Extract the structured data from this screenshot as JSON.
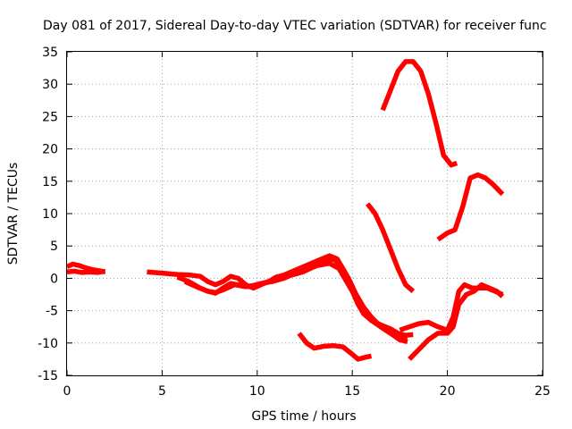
{
  "chart_data": {
    "type": "line",
    "title": "Day 081 of 2017, Sidereal Day-to-day VTEC variation (SDTVAR) for receiver func",
    "xlabel": "GPS time / hours",
    "ylabel": "SDTVAR / TECUs",
    "xlim": [
      0,
      25
    ],
    "ylim": [
      -15,
      35
    ],
    "xticks": [
      0,
      5,
      10,
      15,
      20,
      25
    ],
    "yticks": [
      -15,
      -10,
      -5,
      0,
      5,
      10,
      15,
      20,
      25,
      30,
      35
    ],
    "grid": true,
    "legend": "none",
    "series_color": "#ff0000",
    "series": [
      {
        "x": [
          0.0,
          0.3,
          0.6,
          1.0,
          1.4,
          1.8,
          2.0
        ],
        "y": [
          1.8,
          2.2,
          2.0,
          1.6,
          1.3,
          1.1,
          1.0
        ]
      },
      {
        "x": [
          0.0,
          0.4,
          0.8,
          1.2,
          1.6,
          2.0
        ],
        "y": [
          1.0,
          1.1,
          0.9,
          1.0,
          0.9,
          1.1
        ]
      },
      {
        "x": [
          4.2,
          5.0,
          5.8,
          6.5,
          7.0,
          7.4,
          7.8,
          8.2,
          8.6,
          9.0,
          9.4,
          9.8,
          10.2,
          10.6,
          11.0,
          11.4,
          11.8,
          12.2,
          12.6,
          13.0,
          13.4,
          13.8,
          14.2,
          14.6,
          15.0,
          15.3,
          15.6,
          16.0,
          16.5,
          17.0,
          17.4,
          17.8,
          18.2
        ],
        "y": [
          1.0,
          0.8,
          0.6,
          0.5,
          0.3,
          -0.5,
          -1.0,
          -0.5,
          0.3,
          0.0,
          -1.0,
          -1.5,
          -1.0,
          -0.5,
          0.2,
          0.5,
          1.0,
          1.5,
          2.0,
          2.5,
          3.0,
          3.5,
          3.0,
          1.0,
          -2.0,
          -4.0,
          -5.5,
          -6.5,
          -7.2,
          -7.8,
          -8.5,
          -8.8,
          -8.7
        ]
      },
      {
        "x": [
          5.8,
          6.4,
          7.0,
          7.4,
          7.8,
          8.2,
          8.6,
          9.0,
          9.6,
          10.2,
          10.8,
          11.4,
          12.0,
          12.6,
          13.2,
          13.8,
          14.3,
          14.8,
          15.2,
          15.6,
          16.0,
          16.5,
          17.0,
          17.5,
          17.9
        ],
        "y": [
          0.2,
          -0.5,
          -1.5,
          -2.0,
          -2.3,
          -1.5,
          -0.8,
          -1.0,
          -1.3,
          -0.8,
          -0.5,
          0.0,
          0.8,
          1.5,
          2.0,
          2.3,
          1.5,
          -1.0,
          -3.0,
          -5.0,
          -6.5,
          -7.5,
          -8.5,
          -9.0,
          -9.2
        ]
      },
      {
        "x": [
          6.2,
          6.8,
          7.4,
          7.8,
          8.2,
          8.8,
          9.4,
          10.0,
          10.6,
          11.2,
          11.8,
          12.4,
          13.0,
          13.6,
          14.0,
          14.4,
          14.8,
          15.2,
          15.6,
          16.0,
          16.5,
          17.0,
          17.5,
          17.9
        ],
        "y": [
          -0.5,
          -1.3,
          -2.0,
          -2.2,
          -1.8,
          -1.0,
          -1.3,
          -1.0,
          -0.5,
          0.0,
          0.5,
          1.0,
          1.8,
          2.5,
          3.0,
          2.0,
          0.0,
          -2.5,
          -4.5,
          -6.0,
          -7.5,
          -8.5,
          -9.5,
          -9.8
        ]
      },
      {
        "x": [
          12.2,
          12.6,
          13.0,
          13.5,
          14.0,
          14.5,
          14.9,
          15.3,
          15.7,
          16.0
        ],
        "y": [
          -8.5,
          -10.0,
          -10.8,
          -10.5,
          -10.4,
          -10.6,
          -11.5,
          -12.5,
          -12.2,
          -12.0
        ]
      },
      {
        "x": [
          15.8,
          16.2,
          16.6,
          17.0,
          17.4,
          17.8,
          18.2
        ],
        "y": [
          11.5,
          10.0,
          7.5,
          4.5,
          1.5,
          -1.0,
          -2.0
        ]
      },
      {
        "x": [
          16.6,
          17.0,
          17.4,
          17.8,
          18.2,
          18.6,
          19.0,
          19.4,
          19.8,
          20.2,
          20.5
        ],
        "y": [
          26.0,
          29.0,
          32.0,
          33.5,
          33.5,
          32.0,
          28.5,
          24.0,
          19.0,
          17.5,
          17.8
        ]
      },
      {
        "x": [
          17.5,
          18.0,
          18.5,
          19.0,
          19.5,
          20.0,
          20.3,
          20.6,
          20.9,
          21.3,
          21.7,
          22.1,
          22.5,
          22.9
        ],
        "y": [
          -8.0,
          -7.5,
          -7.0,
          -6.8,
          -7.5,
          -8.0,
          -6.0,
          -2.0,
          -1.0,
          -1.5,
          -1.5,
          -1.5,
          -2.0,
          -2.5
        ]
      },
      {
        "x": [
          18.0,
          18.5,
          19.0,
          19.5,
          20.0,
          20.3,
          20.6,
          21.0,
          21.4,
          21.8,
          22.2,
          22.6,
          22.9
        ],
        "y": [
          -12.5,
          -11.0,
          -9.5,
          -8.5,
          -8.5,
          -7.5,
          -4.0,
          -2.5,
          -2.0,
          -1.0,
          -1.5,
          -2.0,
          -2.8
        ]
      },
      {
        "x": [
          19.5,
          20.0,
          20.4,
          20.8,
          21.2,
          21.6,
          22.0,
          22.4,
          22.9
        ],
        "y": [
          6.0,
          7.0,
          7.5,
          11.0,
          15.5,
          16.0,
          15.5,
          14.5,
          13.0
        ]
      }
    ]
  }
}
